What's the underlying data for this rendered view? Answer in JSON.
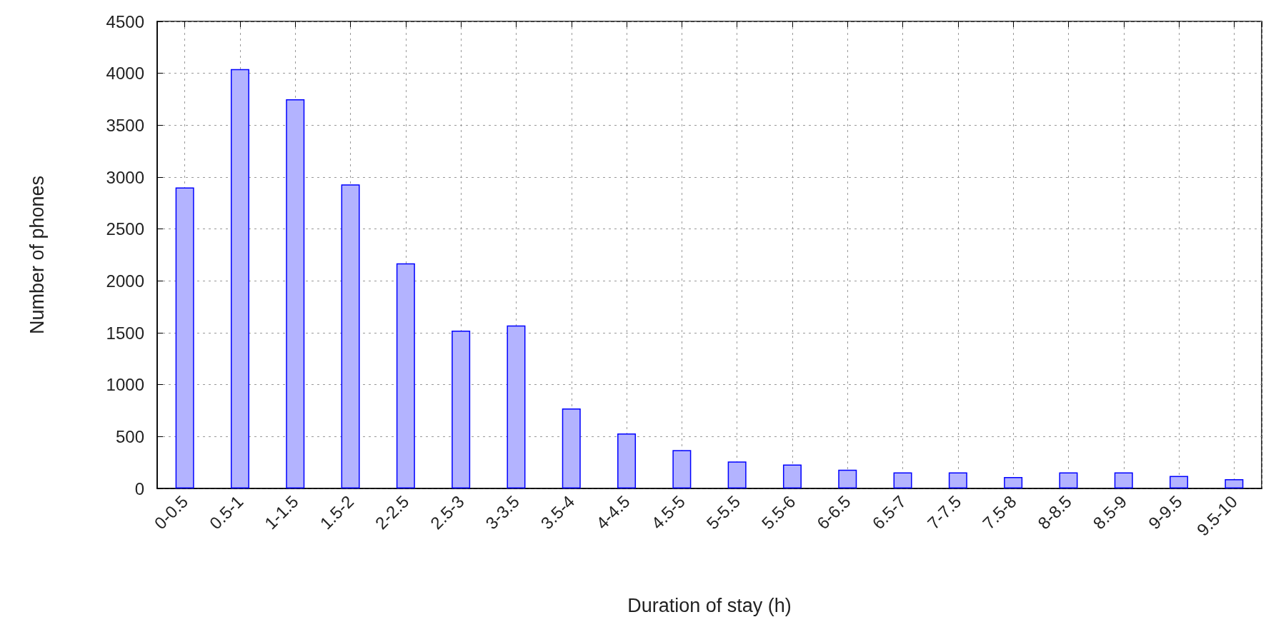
{
  "chart_data": {
    "type": "bar",
    "xlabel": "Duration of stay (h)",
    "ylabel": "Number of phones",
    "categories": [
      "0-0.5",
      "0.5-1",
      "1-1.5",
      "1.5-2",
      "2-2.5",
      "2.5-3",
      "3-3.5",
      "3.5-4",
      "4-4.5",
      "4.5-5",
      "5-5.5",
      "5.5-6",
      "6-6.5",
      "6.5-7",
      "7-7.5",
      "7.5-8",
      "8-8.5",
      "8.5-9",
      "9-9.5",
      "9.5-10"
    ],
    "values": [
      2900,
      4040,
      3750,
      2930,
      2170,
      1520,
      1570,
      770,
      530,
      370,
      260,
      230,
      180,
      155,
      155,
      110,
      155,
      155,
      120,
      90
    ],
    "color": "#b3b3ff",
    "ylim": [
      0,
      4500
    ],
    "yticks": [
      0,
      500,
      1000,
      1500,
      2000,
      2500,
      3000,
      3500,
      4000,
      4500
    ],
    "grid": true
  }
}
